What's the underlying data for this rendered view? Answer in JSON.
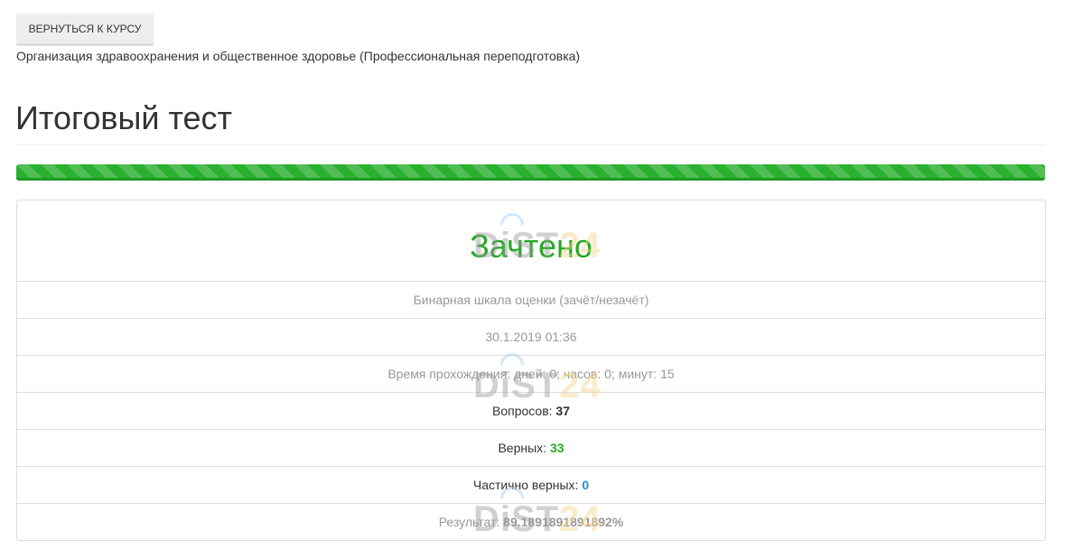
{
  "back_button": "ВЕРНУТЬСЯ К КУРСУ",
  "course_name": "Организация здравоохранения и общественное здоровье (Профессиональная переподготовка)",
  "title": "Итоговый тест",
  "progress_percent": 100,
  "colors": {
    "success": "#22aa22",
    "info": "#1e90d0"
  },
  "result": {
    "status": "Зачтено",
    "scale": "Бинарная шкала оценки (зачёт/незачёт)",
    "datetime": "30.1.2019 01:36",
    "duration": "Время прохождения: дней: 0; часов: 0; минут: 15",
    "questions_label": "Вопросов: ",
    "questions": "37",
    "correct_label": "Верных: ",
    "correct": "33",
    "partial_label": "Частично верных: ",
    "partial": "0",
    "score_label": "Результат: ",
    "score": "89.1891891891892%"
  },
  "watermark": {
    "part1": "DiST",
    "part2": "24"
  }
}
